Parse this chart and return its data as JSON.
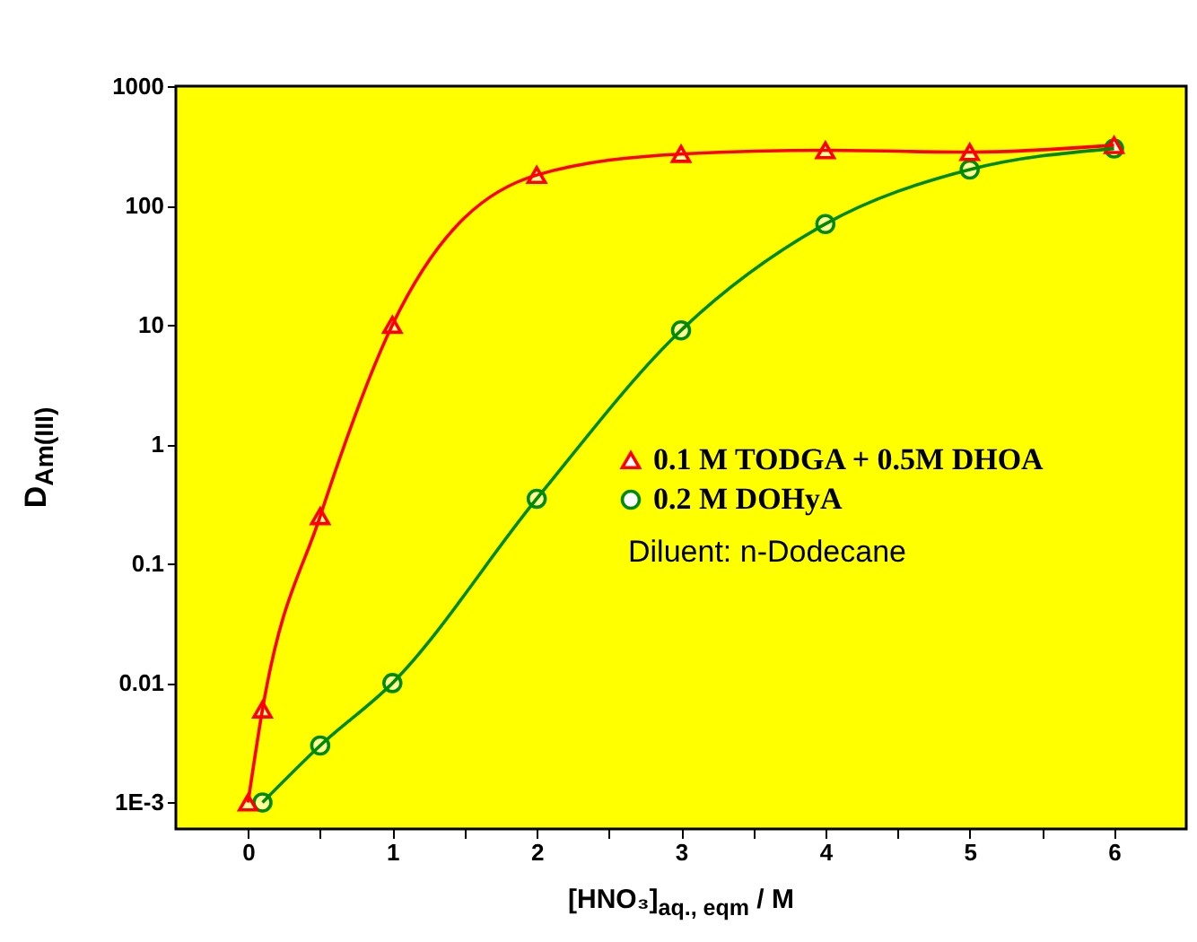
{
  "chart_data": {
    "type": "line",
    "xlabel": "[HNO₃]$_{aq., eqm}$ / M",
    "ylabel": "D$_{Am(III)}$",
    "series": [
      {
        "name": "0.1 M TODGA + 0.5M DHOA",
        "color": "#ff0000",
        "marker": "triangle",
        "x": [
          0,
          0.1,
          0.5,
          1,
          2,
          3,
          4,
          5,
          6
        ],
        "values": [
          0.001,
          0.006,
          0.25,
          10,
          180,
          270,
          290,
          280,
          320
        ]
      },
      {
        "name": "0.2 M DOHyA",
        "color": "#008a00",
        "marker": "circle",
        "x": [
          0.1,
          0.5,
          1,
          2,
          3,
          4,
          5,
          6
        ],
        "values": [
          0.001,
          0.003,
          0.01,
          0.35,
          9,
          70,
          200,
          300
        ]
      }
    ],
    "annotations": [
      "Diluent: n-Dodecane"
    ],
    "xlim": [
      -0.5,
      6.5
    ],
    "xticks": [
      0,
      {
        "value": 0.5,
        "label": null
      },
      1,
      {
        "value": 1.5,
        "label": null
      },
      2,
      {
        "value": 2.5,
        "label": null
      },
      3,
      {
        "value": 3.5,
        "label": null
      },
      4,
      {
        "value": 4.5,
        "label": null
      },
      5,
      {
        "value": 5.5,
        "label": null
      },
      6
    ],
    "ylim": [
      0.0006,
      1000
    ],
    "yticks": [
      {
        "value": 0.001,
        "label": "1E-3"
      },
      0.01,
      0.1,
      1,
      10,
      100,
      1000
    ],
    "log": "y",
    "grid": false,
    "legend": "right",
    "line_style": "solid"
  }
}
